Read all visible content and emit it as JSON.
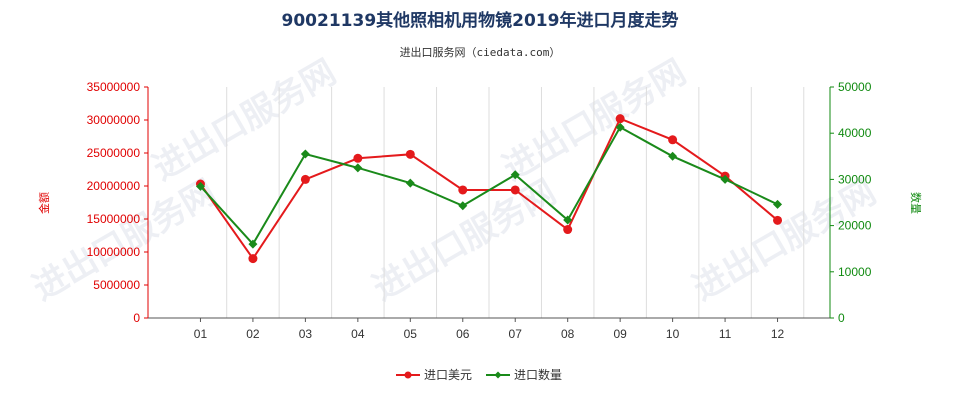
{
  "chart_data": {
    "type": "line",
    "title": "90021139其他照相机用物镜2019年进口月度走势",
    "subtitle": "进出口服务网（ciedata.com）",
    "categories": [
      "01",
      "02",
      "03",
      "04",
      "05",
      "06",
      "07",
      "08",
      "09",
      "10",
      "11",
      "12"
    ],
    "y_left": {
      "label": "金额",
      "range": [
        0,
        35000000
      ],
      "ticks": [
        "0",
        "5000000",
        "10000000",
        "15000000",
        "20000000",
        "25000000",
        "30000000",
        "35000000"
      ],
      "tick_values": [
        0,
        5000000,
        10000000,
        15000000,
        20000000,
        25000000,
        30000000,
        35000000
      ]
    },
    "y_right": {
      "label": "数量",
      "range": [
        0,
        50000
      ],
      "ticks": [
        "0",
        "10000",
        "20000",
        "30000",
        "40000",
        "50000"
      ],
      "tick_values": [
        0,
        10000,
        20000,
        30000,
        40000,
        50000
      ]
    },
    "series": [
      {
        "name": "进口美元",
        "axis": "left",
        "color": "#e41a1c",
        "values": [
          20300000,
          9000000,
          21000000,
          24200000,
          24800000,
          19400000,
          19400000,
          13400000,
          30200000,
          27000000,
          21500000,
          14800000
        ]
      },
      {
        "name": "进口数量",
        "axis": "right",
        "color": "#1a8a1a",
        "values": [
          28500,
          16000,
          35500,
          32500,
          29200,
          24300,
          31000,
          21200,
          41300,
          35000,
          30000,
          24600
        ]
      }
    ],
    "grid": "vertical",
    "legend": "bottom-center"
  },
  "watermark_text": "进出口服务网"
}
